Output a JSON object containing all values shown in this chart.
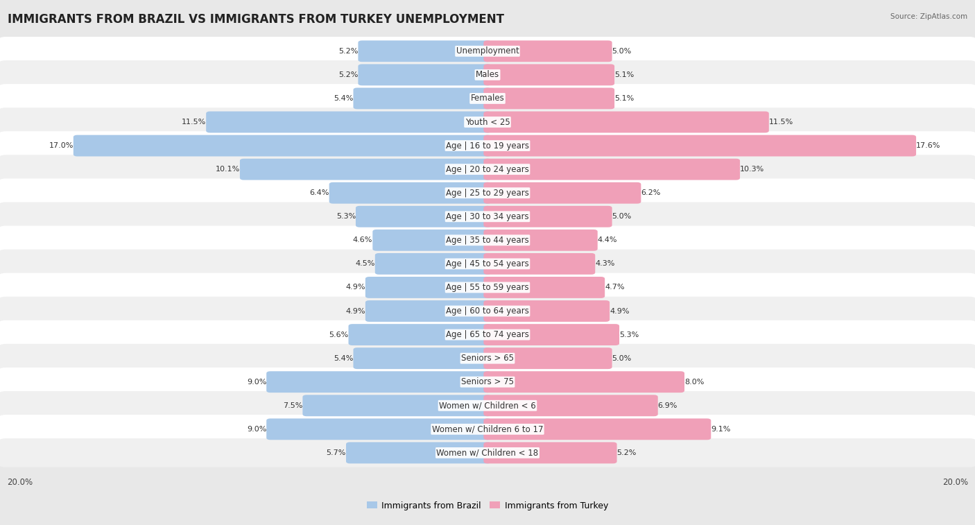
{
  "title": "IMMIGRANTS FROM BRAZIL VS IMMIGRANTS FROM TURKEY UNEMPLOYMENT",
  "source": "Source: ZipAtlas.com",
  "categories": [
    "Unemployment",
    "Males",
    "Females",
    "Youth < 25",
    "Age | 16 to 19 years",
    "Age | 20 to 24 years",
    "Age | 25 to 29 years",
    "Age | 30 to 34 years",
    "Age | 35 to 44 years",
    "Age | 45 to 54 years",
    "Age | 55 to 59 years",
    "Age | 60 to 64 years",
    "Age | 65 to 74 years",
    "Seniors > 65",
    "Seniors > 75",
    "Women w/ Children < 6",
    "Women w/ Children 6 to 17",
    "Women w/ Children < 18"
  ],
  "brazil_values": [
    5.2,
    5.2,
    5.4,
    11.5,
    17.0,
    10.1,
    6.4,
    5.3,
    4.6,
    4.5,
    4.9,
    4.9,
    5.6,
    5.4,
    9.0,
    7.5,
    9.0,
    5.7
  ],
  "turkey_values": [
    5.0,
    5.1,
    5.1,
    11.5,
    17.6,
    10.3,
    6.2,
    5.0,
    4.4,
    4.3,
    4.7,
    4.9,
    5.3,
    5.0,
    8.0,
    6.9,
    9.1,
    5.2
  ],
  "brazil_color": "#a8c8e8",
  "turkey_color": "#f0a0b8",
  "brazil_label": "Immigrants from Brazil",
  "turkey_label": "Immigrants from Turkey",
  "max_val": 20.0,
  "bg_color": "#e8e8e8",
  "row_bg_even": "#ffffff",
  "row_bg_odd": "#f0f0f0",
  "title_fontsize": 12,
  "label_fontsize": 8.5,
  "value_fontsize": 8,
  "axis_label_fontsize": 8.5
}
